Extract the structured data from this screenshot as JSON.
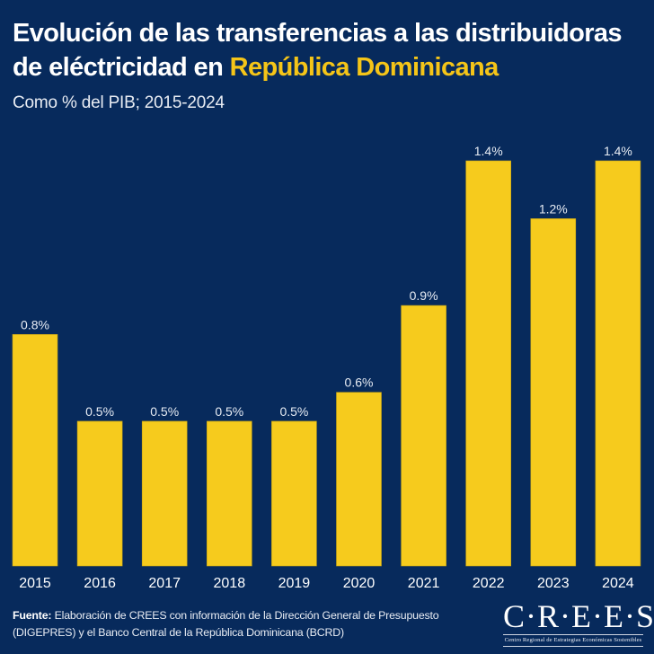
{
  "header": {
    "title_part1": "Evolución de las transferencias a las distribuidoras de eléctricidad en ",
    "title_highlight": "República Dominicana",
    "subtitle": "Como % del PIB; 2015-2024"
  },
  "colors": {
    "background": "#072a5c",
    "bar": "#f6cb1d",
    "highlight": "#f5c518",
    "text": "#ffffff"
  },
  "chart_data": {
    "type": "bar",
    "title": "Evolución de las transferencias a las distribuidoras de eléctricidad en República Dominicana",
    "subtitle": "Como % del PIB; 2015-2024",
    "xlabel": "",
    "ylabel": "% del PIB",
    "categories": [
      "2015",
      "2016",
      "2017",
      "2018",
      "2019",
      "2020",
      "2021",
      "2022",
      "2023",
      "2024"
    ],
    "values": [
      0.8,
      0.5,
      0.5,
      0.5,
      0.5,
      0.6,
      0.9,
      1.4,
      1.2,
      1.4
    ],
    "labels": [
      "0.8%",
      "0.5%",
      "0.5%",
      "0.5%",
      "0.5%",
      "0.6%",
      "0.9%",
      "1.4%",
      "1.2%",
      "1.4%"
    ],
    "ylim": [
      0,
      1.4
    ],
    "grid": false,
    "legend": "none",
    "y_axis_visible": false
  },
  "footer": {
    "source_label": "Fuente:",
    "source_text": " Elaboración de CREES con información de la Dirección General de Presupuesto (DIGEPRES) y el Banco Central de la República Dominicana (BCRD)",
    "logo_text": "C·R·E·E·S",
    "logo_subtitle": "Centro Regional de Estrategias Económicas Sostenibles"
  }
}
